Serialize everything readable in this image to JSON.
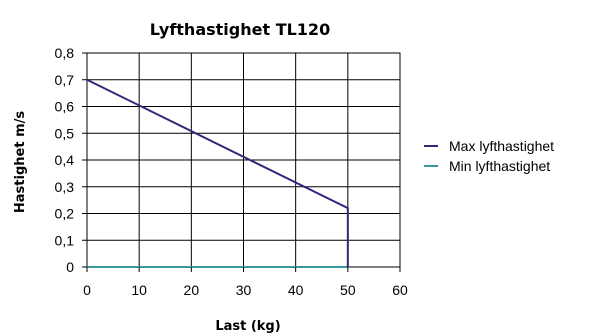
{
  "chart_data": {
    "type": "line",
    "title": "Lyfthastighet  TL120",
    "xlabel": "Last (kg)",
    "ylabel": "Hastighet m/s",
    "xlim": [
      0,
      60
    ],
    "ylim": [
      0,
      0.8
    ],
    "x_ticks": [
      0,
      10,
      20,
      30,
      40,
      50,
      60
    ],
    "y_ticks": [
      0,
      0.1,
      0.2,
      0.3,
      0.4,
      0.5,
      0.6,
      0.7,
      0.8
    ],
    "x_tick_labels": [
      "0",
      "10",
      "20",
      "30",
      "40",
      "50",
      "60"
    ],
    "y_tick_labels": [
      "0",
      "0,1",
      "0,2",
      "0,3",
      "0,4",
      "0,5",
      "0,6",
      "0,7",
      "0,8"
    ],
    "grid": true,
    "legend_position": "right",
    "series": [
      {
        "name": "Max lyfthastighet",
        "color": "#2e2a7a",
        "points": [
          [
            0,
            0.7
          ],
          [
            50,
            0.22
          ],
          [
            50,
            0
          ]
        ]
      },
      {
        "name": "Min lyfthastighet",
        "color": "#3a9a9a",
        "points": [
          [
            0,
            0
          ],
          [
            50,
            0
          ]
        ]
      }
    ]
  }
}
